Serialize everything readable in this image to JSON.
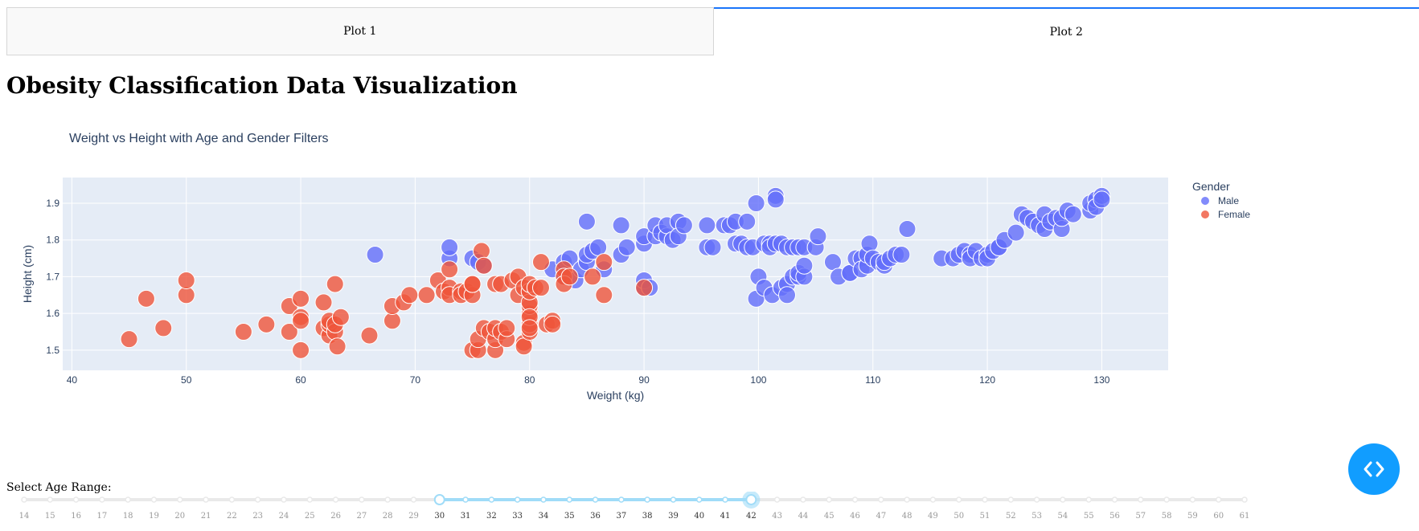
{
  "tabs": [
    {
      "label": "Plot 1",
      "active": false
    },
    {
      "label": "Plot 2",
      "active": true
    }
  ],
  "page_title": "Obesity Classification Data Visualization",
  "slider": {
    "label": "Select Age Range:",
    "marks": [
      14,
      15,
      16,
      17,
      18,
      19,
      20,
      21,
      22,
      23,
      24,
      25,
      26,
      27,
      28,
      29,
      30,
      31,
      32,
      33,
      34,
      35,
      36,
      37,
      38,
      39,
      40,
      41,
      42,
      43,
      44,
      45,
      46,
      47,
      48,
      49,
      50,
      51,
      52,
      53,
      54,
      55,
      56,
      57,
      58,
      59,
      60,
      61
    ],
    "range": [
      30,
      42
    ]
  },
  "colors": {
    "male": "#636efa",
    "female": "#ef553b",
    "accent": "#1975fa",
    "slider": "#a0dcf8",
    "fab": "#119dff"
  },
  "fab_icon": "code-brackets-icon",
  "chart_data": {
    "type": "scatter",
    "title": "Weight vs Height with Age and Gender Filters",
    "xlabel": "Weight (kg)",
    "ylabel": "Height (cm)",
    "xlim": [
      39.2,
      135.8
    ],
    "ylim": [
      1.445,
      1.97
    ],
    "xticks": [
      40,
      50,
      60,
      70,
      80,
      90,
      100,
      110,
      120,
      130
    ],
    "yticks": [
      1.5,
      1.6,
      1.7,
      1.8,
      1.9
    ],
    "grid": true,
    "legend": {
      "title": "Gender",
      "position": "right"
    },
    "series": [
      {
        "name": "Male",
        "points": [
          [
            66.5,
            1.76
          ],
          [
            73,
            1.75
          ],
          [
            73,
            1.78
          ],
          [
            75,
            1.75
          ],
          [
            75.5,
            1.74
          ],
          [
            76,
            1.73
          ],
          [
            82,
            1.72
          ],
          [
            83,
            1.74
          ],
          [
            83,
            1.7
          ],
          [
            83.5,
            1.75
          ],
          [
            84,
            1.69
          ],
          [
            84.5,
            1.72
          ],
          [
            85,
            1.74
          ],
          [
            85,
            1.76
          ],
          [
            85,
            1.85
          ],
          [
            85.5,
            1.77
          ],
          [
            86,
            1.78
          ],
          [
            86.5,
            1.72
          ],
          [
            88,
            1.76
          ],
          [
            88,
            1.84
          ],
          [
            88.5,
            1.78
          ],
          [
            90,
            1.67
          ],
          [
            90,
            1.69
          ],
          [
            90,
            1.79
          ],
          [
            90,
            1.81
          ],
          [
            90.5,
            1.67
          ],
          [
            91,
            1.81
          ],
          [
            91,
            1.84
          ],
          [
            91.5,
            1.82
          ],
          [
            92,
            1.81
          ],
          [
            92,
            1.84
          ],
          [
            92.5,
            1.8
          ],
          [
            93,
            1.85
          ],
          [
            93,
            1.81
          ],
          [
            93.5,
            1.84
          ],
          [
            95.5,
            1.78
          ],
          [
            95.5,
            1.84
          ],
          [
            96,
            1.78
          ],
          [
            97,
            1.84
          ],
          [
            97.5,
            1.84
          ],
          [
            98,
            1.79
          ],
          [
            98,
            1.85
          ],
          [
            98.5,
            1.79
          ],
          [
            99,
            1.85
          ],
          [
            99,
            1.78
          ],
          [
            99.5,
            1.78
          ],
          [
            99.8,
            1.9
          ],
          [
            99.8,
            1.64
          ],
          [
            100,
            1.7
          ],
          [
            100.5,
            1.67
          ],
          [
            100.5,
            1.79
          ],
          [
            101,
            1.79
          ],
          [
            101,
            1.78
          ],
          [
            101.2,
            1.65
          ],
          [
            101.5,
            1.92
          ],
          [
            101.5,
            1.91
          ],
          [
            101.5,
            1.79
          ],
          [
            102,
            1.67
          ],
          [
            102,
            1.79
          ],
          [
            102.5,
            1.78
          ],
          [
            102.5,
            1.68
          ],
          [
            102.5,
            1.65
          ],
          [
            103,
            1.7
          ],
          [
            103,
            1.78
          ],
          [
            103.5,
            1.7
          ],
          [
            103.5,
            1.78
          ],
          [
            103.5,
            1.71
          ],
          [
            104,
            1.7
          ],
          [
            104,
            1.73
          ],
          [
            104,
            1.78
          ],
          [
            105,
            1.78
          ],
          [
            105.2,
            1.81
          ],
          [
            106.5,
            1.74
          ],
          [
            107,
            1.7
          ],
          [
            108,
            1.71
          ],
          [
            108,
            1.71
          ],
          [
            108.5,
            1.75
          ],
          [
            109,
            1.75
          ],
          [
            109,
            1.72
          ],
          [
            109.5,
            1.73
          ],
          [
            109.5,
            1.76
          ],
          [
            109.7,
            1.79
          ],
          [
            110,
            1.75
          ],
          [
            110.5,
            1.74
          ],
          [
            111,
            1.73
          ],
          [
            111,
            1.74
          ],
          [
            111.5,
            1.75
          ],
          [
            112,
            1.76
          ],
          [
            112.5,
            1.76
          ],
          [
            113,
            1.83
          ],
          [
            116,
            1.75
          ],
          [
            117,
            1.75
          ],
          [
            117.5,
            1.76
          ],
          [
            118,
            1.77
          ],
          [
            118.5,
            1.76
          ],
          [
            118.5,
            1.75
          ],
          [
            119,
            1.77
          ],
          [
            119.5,
            1.75
          ],
          [
            120,
            1.76
          ],
          [
            120,
            1.75
          ],
          [
            120.5,
            1.77
          ],
          [
            121,
            1.78
          ],
          [
            121,
            1.78
          ],
          [
            121.5,
            1.8
          ],
          [
            122.5,
            1.82
          ],
          [
            123,
            1.87
          ],
          [
            123.5,
            1.86
          ],
          [
            124,
            1.85
          ],
          [
            124.5,
            1.84
          ],
          [
            125,
            1.83
          ],
          [
            125,
            1.87
          ],
          [
            125.5,
            1.85
          ],
          [
            126,
            1.86
          ],
          [
            126.5,
            1.83
          ],
          [
            126.5,
            1.86
          ],
          [
            127,
            1.88
          ],
          [
            127.5,
            1.87
          ],
          [
            129,
            1.88
          ],
          [
            129,
            1.9
          ],
          [
            129.5,
            1.91
          ],
          [
            129.5,
            1.89
          ],
          [
            130,
            1.92
          ],
          [
            130,
            1.91
          ]
        ]
      },
      {
        "name": "Female",
        "points": [
          [
            45,
            1.53
          ],
          [
            46.5,
            1.64
          ],
          [
            48,
            1.56
          ],
          [
            50,
            1.65
          ],
          [
            50,
            1.69
          ],
          [
            55,
            1.55
          ],
          [
            57,
            1.57
          ],
          [
            59,
            1.55
          ],
          [
            59,
            1.62
          ],
          [
            60,
            1.5
          ],
          [
            60,
            1.59
          ],
          [
            60,
            1.64
          ],
          [
            60,
            1.58
          ],
          [
            62,
            1.63
          ],
          [
            62,
            1.56
          ],
          [
            62.5,
            1.54
          ],
          [
            62.5,
            1.57
          ],
          [
            62.5,
            1.58
          ],
          [
            63,
            1.55
          ],
          [
            63,
            1.68
          ],
          [
            63,
            1.57
          ],
          [
            63.2,
            1.51
          ],
          [
            63.5,
            1.59
          ],
          [
            66,
            1.54
          ],
          [
            68,
            1.58
          ],
          [
            68,
            1.62
          ],
          [
            69,
            1.63
          ],
          [
            69.5,
            1.65
          ],
          [
            71,
            1.65
          ],
          [
            72,
            1.69
          ],
          [
            72.5,
            1.66
          ],
          [
            73,
            1.67
          ],
          [
            73,
            1.65
          ],
          [
            73,
            1.72
          ],
          [
            74,
            1.66
          ],
          [
            74,
            1.65
          ],
          [
            74.5,
            1.66
          ],
          [
            75,
            1.65
          ],
          [
            75,
            1.68
          ],
          [
            75,
            1.68
          ],
          [
            75,
            1.5
          ],
          [
            75.5,
            1.5
          ],
          [
            75.5,
            1.53
          ],
          [
            75.8,
            1.77
          ],
          [
            76,
            1.56
          ],
          [
            76,
            1.73
          ],
          [
            76.5,
            1.55
          ],
          [
            77,
            1.5
          ],
          [
            77,
            1.53
          ],
          [
            77,
            1.56
          ],
          [
            77,
            1.68
          ],
          [
            77.5,
            1.55
          ],
          [
            77.5,
            1.68
          ],
          [
            78,
            1.53
          ],
          [
            78,
            1.56
          ],
          [
            78.5,
            1.69
          ],
          [
            79,
            1.65
          ],
          [
            79,
            1.7
          ],
          [
            79.5,
            1.52
          ],
          [
            79.5,
            1.51
          ],
          [
            79.5,
            1.67
          ],
          [
            80,
            1.55
          ],
          [
            80,
            1.57
          ],
          [
            80,
            1.6
          ],
          [
            80,
            1.62
          ],
          [
            80,
            1.63
          ],
          [
            80,
            1.59
          ],
          [
            80,
            1.66
          ],
          [
            80,
            1.68
          ],
          [
            80,
            1.56
          ],
          [
            80.5,
            1.67
          ],
          [
            81,
            1.74
          ],
          [
            81,
            1.67
          ],
          [
            81.5,
            1.57
          ],
          [
            82,
            1.58
          ],
          [
            82,
            1.57
          ],
          [
            83,
            1.72
          ],
          [
            83,
            1.7
          ],
          [
            83,
            1.68
          ],
          [
            83.5,
            1.7
          ],
          [
            85.5,
            1.7
          ],
          [
            86.5,
            1.74
          ],
          [
            86.5,
            1.65
          ],
          [
            90,
            1.67
          ]
        ]
      }
    ]
  }
}
